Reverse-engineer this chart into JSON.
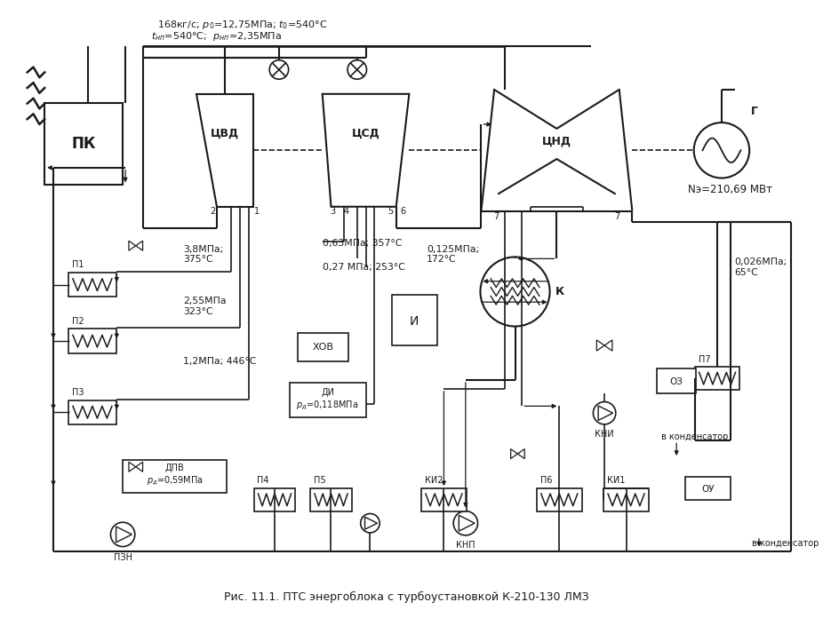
{
  "title": "Рис. 11.1. ПТС энергоблока с турбоустановкой К-210-130 ЛМЗ",
  "top_label1": "168кг/с; p0=12,75МПа; t0=540°C",
  "top_label2": "tnn=540°C;  pnn=2,35МПа",
  "label_38": "3,8МПа;\n375°C",
  "label_255": "2,55МПа\n323°C",
  "label_12": "1,2МПа; 446°C",
  "label_063": "0,63МПа; 357°C",
  "label_027": "0,27 МПа; 253°C",
  "label_0125": "0,125МПа;\n172°C",
  "label_0026": "0,026МПа;\n65°C",
  "label_Ne": "Nэ=210,69 МВт",
  "label_K": "К",
  "label_PK": "ПК",
  "label_CVD": "ЦВД",
  "label_CSD": "ЦСД",
  "label_CND": "ЦНД",
  "label_G": "Г",
  "label_P1": "П1",
  "label_P2": "П2",
  "label_P3": "П3",
  "label_P4": "П4",
  "label_P5": "П5",
  "label_P6": "П6",
  "label_P7": "П7",
  "label_HOB": "ХОВ",
  "label_I": "И",
  "label_DI": "ДИ\npд=0,118МПа",
  "label_DPV": "ДПВ\npд=0,59МПа",
  "label_PZN": "ПЗН",
  "label_KNP": "КНП",
  "label_KI2": "КИ2",
  "label_KI1": "КИ1",
  "label_KNI": "КНИ",
  "label_OZ": "ОЗ",
  "label_OU": "ОУ",
  "label_v_kond1": "в конденсатор",
  "label_v_kond2": "в конденсатор",
  "bg_color": "#ffffff",
  "line_color": "#1a1a1a",
  "fontsize_main": 7.5,
  "fontsize_title": 9.0
}
